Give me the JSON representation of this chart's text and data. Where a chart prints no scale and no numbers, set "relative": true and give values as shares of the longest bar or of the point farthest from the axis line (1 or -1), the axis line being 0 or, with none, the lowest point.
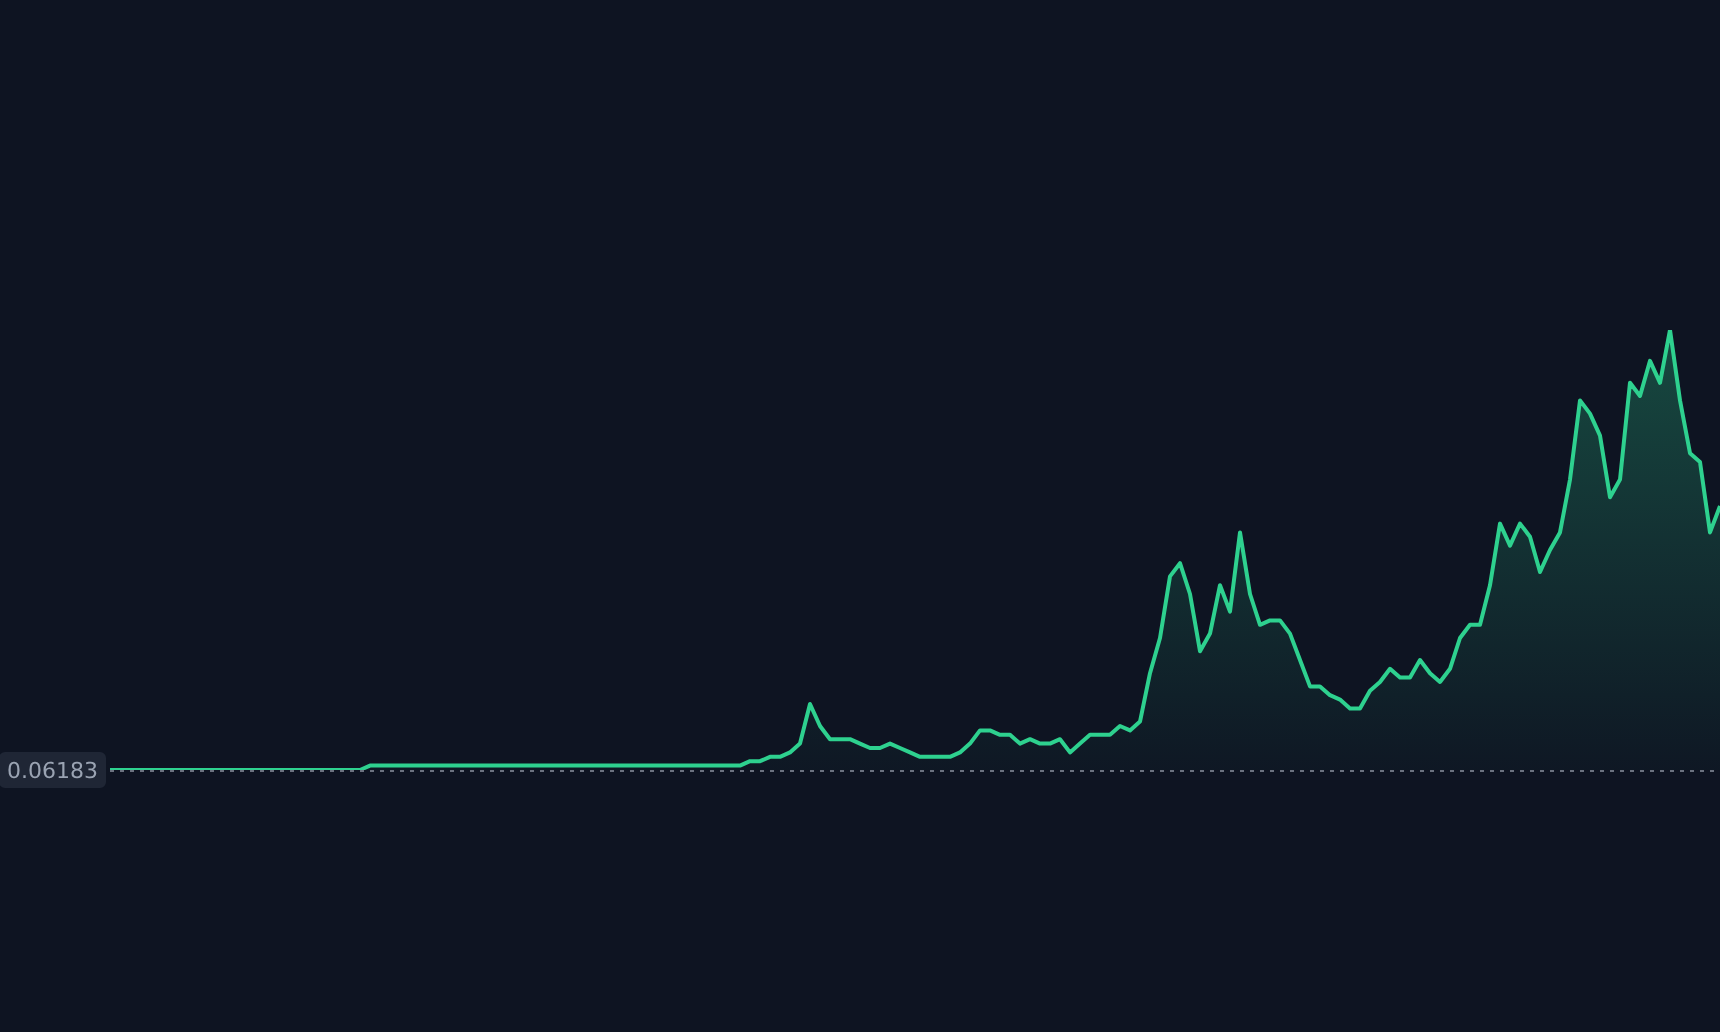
{
  "chart_data": {
    "type": "area",
    "relative": true,
    "categories": [
      null,
      null,
      null,
      null,
      null,
      null,
      null,
      null,
      null,
      null,
      null,
      null,
      null,
      null,
      null,
      null,
      null,
      null,
      null,
      null,
      null,
      null,
      null,
      null,
      null,
      null,
      null,
      null,
      null,
      null,
      null,
      null,
      null,
      null,
      null,
      null,
      null,
      null,
      null,
      null,
      null,
      null,
      null,
      null,
      null,
      null,
      null,
      null,
      null,
      null,
      null,
      null,
      null,
      null,
      null,
      null,
      null,
      null,
      null,
      null,
      null,
      null,
      null,
      null,
      null,
      null,
      null,
      null,
      null,
      null,
      null,
      null,
      null,
      null,
      null,
      null,
      null,
      null,
      null,
      null,
      null,
      null,
      null,
      null,
      null,
      null,
      null,
      null,
      null,
      null,
      null,
      null,
      null,
      null,
      null,
      null,
      null,
      null,
      null,
      null,
      null,
      null,
      null,
      null,
      null,
      null,
      null,
      null,
      null,
      null,
      null,
      null,
      null,
      null,
      null,
      null,
      null,
      null,
      null,
      null,
      null,
      null,
      null,
      null,
      null,
      null,
      null,
      null,
      null,
      null,
      null,
      null,
      null,
      null,
      null,
      null,
      null,
      null,
      null,
      null,
      null,
      null,
      null,
      null,
      null,
      null,
      null,
      null,
      null,
      null,
      null,
      null,
      null,
      null,
      null,
      null,
      null,
      null,
      null,
      null,
      null,
      null
    ],
    "series": [
      {
        "color": "#2ed18f",
        "values": [
          0,
          0,
          0,
          0,
          0,
          0,
          0,
          0,
          0,
          0,
          0,
          0,
          0,
          0,
          0,
          0,
          0,
          0,
          0,
          0,
          0,
          0,
          0,
          0,
          0,
          0,
          0.01,
          0.01,
          0.01,
          0.01,
          0.01,
          0.01,
          0.01,
          0.01,
          0.01,
          0.01,
          0.01,
          0.01,
          0.01,
          0.01,
          0.01,
          0.01,
          0.01,
          0.01,
          0.01,
          0.01,
          0.01,
          0.01,
          0.01,
          0.01,
          0.01,
          0.01,
          0.01,
          0.01,
          0.01,
          0.01,
          0.01,
          0.01,
          0.01,
          0.01,
          0.01,
          0.01,
          0.01,
          0.01,
          0.02,
          0.02,
          0.03,
          0.03,
          0.04,
          0.06,
          0.15,
          0.1,
          0.07,
          0.07,
          0.07,
          0.06,
          0.05,
          0.05,
          0.06,
          0.05,
          0.04,
          0.03,
          0.03,
          0.03,
          0.03,
          0.04,
          0.06,
          0.09,
          0.09,
          0.08,
          0.08,
          0.06,
          0.07,
          0.06,
          0.06,
          0.07,
          0.04,
          0.06,
          0.08,
          0.08,
          0.08,
          0.1,
          0.09,
          0.11,
          0.22,
          0.3,
          0.44,
          0.47,
          0.4,
          0.27,
          0.31,
          0.42,
          0.36,
          0.54,
          0.4,
          0.33,
          0.34,
          0.34,
          0.31,
          0.25,
          0.19,
          0.19,
          0.17,
          0.16,
          0.14,
          0.14,
          0.18,
          0.2,
          0.23,
          0.21,
          0.21,
          0.25,
          0.22,
          0.2,
          0.23,
          0.3,
          0.33,
          0.33,
          0.42,
          0.56,
          0.51,
          0.56,
          0.53,
          0.45,
          0.5,
          0.54,
          0.66,
          0.84,
          0.81,
          0.76,
          0.62,
          0.66,
          0.88,
          0.85,
          0.93,
          0.88,
          1.0,
          0.84,
          0.72,
          0.7,
          0.54,
          0.6
        ]
      }
    ],
    "ref_lines": [
      {
        "axis": "y",
        "value": 0,
        "color": "#6b7280",
        "line_style": "dotted"
      }
    ],
    "annotations": [
      "0.06183"
    ],
    "legend": false,
    "marker": "none"
  }
}
